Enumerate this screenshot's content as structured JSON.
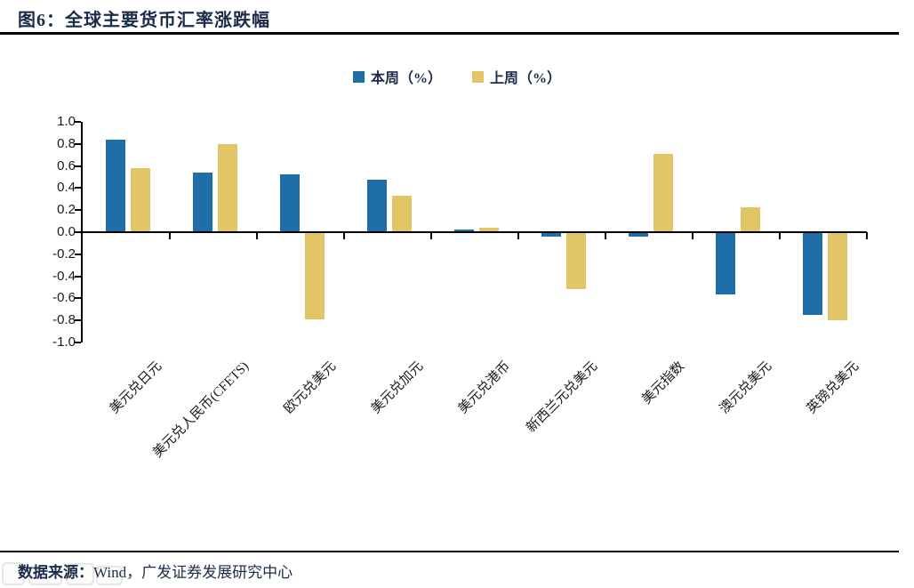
{
  "figure": {
    "title": "图6：全球主要货币汇率涨跌幅",
    "source_label": "数据来源：",
    "source_text": "Wind，广发证券发展研究中心"
  },
  "colors": {
    "title_navy": "#1b2b4a",
    "this_week_blue": "#1f6ea9",
    "last_week_yellow": "#e2c567",
    "axis_black": "#000000"
  },
  "chart_data": {
    "type": "bar",
    "title": "全球主要货币汇率涨跌幅",
    "categories": [
      "美元兑日元",
      "美元兑人民币(CFETS)",
      "欧元兑美元",
      "美元兑加元",
      "美元兑港币",
      "新西兰元兑美元",
      "美元指数",
      "澳元兑美元",
      "英镑兑美元"
    ],
    "series": [
      {
        "name": "本周（%）",
        "color": "#1f6ea9",
        "values": [
          0.83,
          0.53,
          0.52,
          0.47,
          0.02,
          -0.03,
          -0.03,
          -0.56,
          -0.74
        ]
      },
      {
        "name": "上周（%）",
        "color": "#e2c567",
        "values": [
          0.57,
          0.79,
          -0.78,
          0.32,
          0.03,
          -0.51,
          0.7,
          0.22,
          -0.79
        ]
      }
    ],
    "xlabel": "",
    "ylabel": "",
    "ylim": [
      -1.0,
      1.0
    ],
    "ytick_labels": [
      "1.0",
      "0.8",
      "0.6",
      "0.4",
      "0.2",
      "0.0",
      "-0.2",
      "-0.4",
      "-0.6",
      "-0.8",
      "-1.0"
    ],
    "grid": false,
    "legend_position": "top-center"
  }
}
